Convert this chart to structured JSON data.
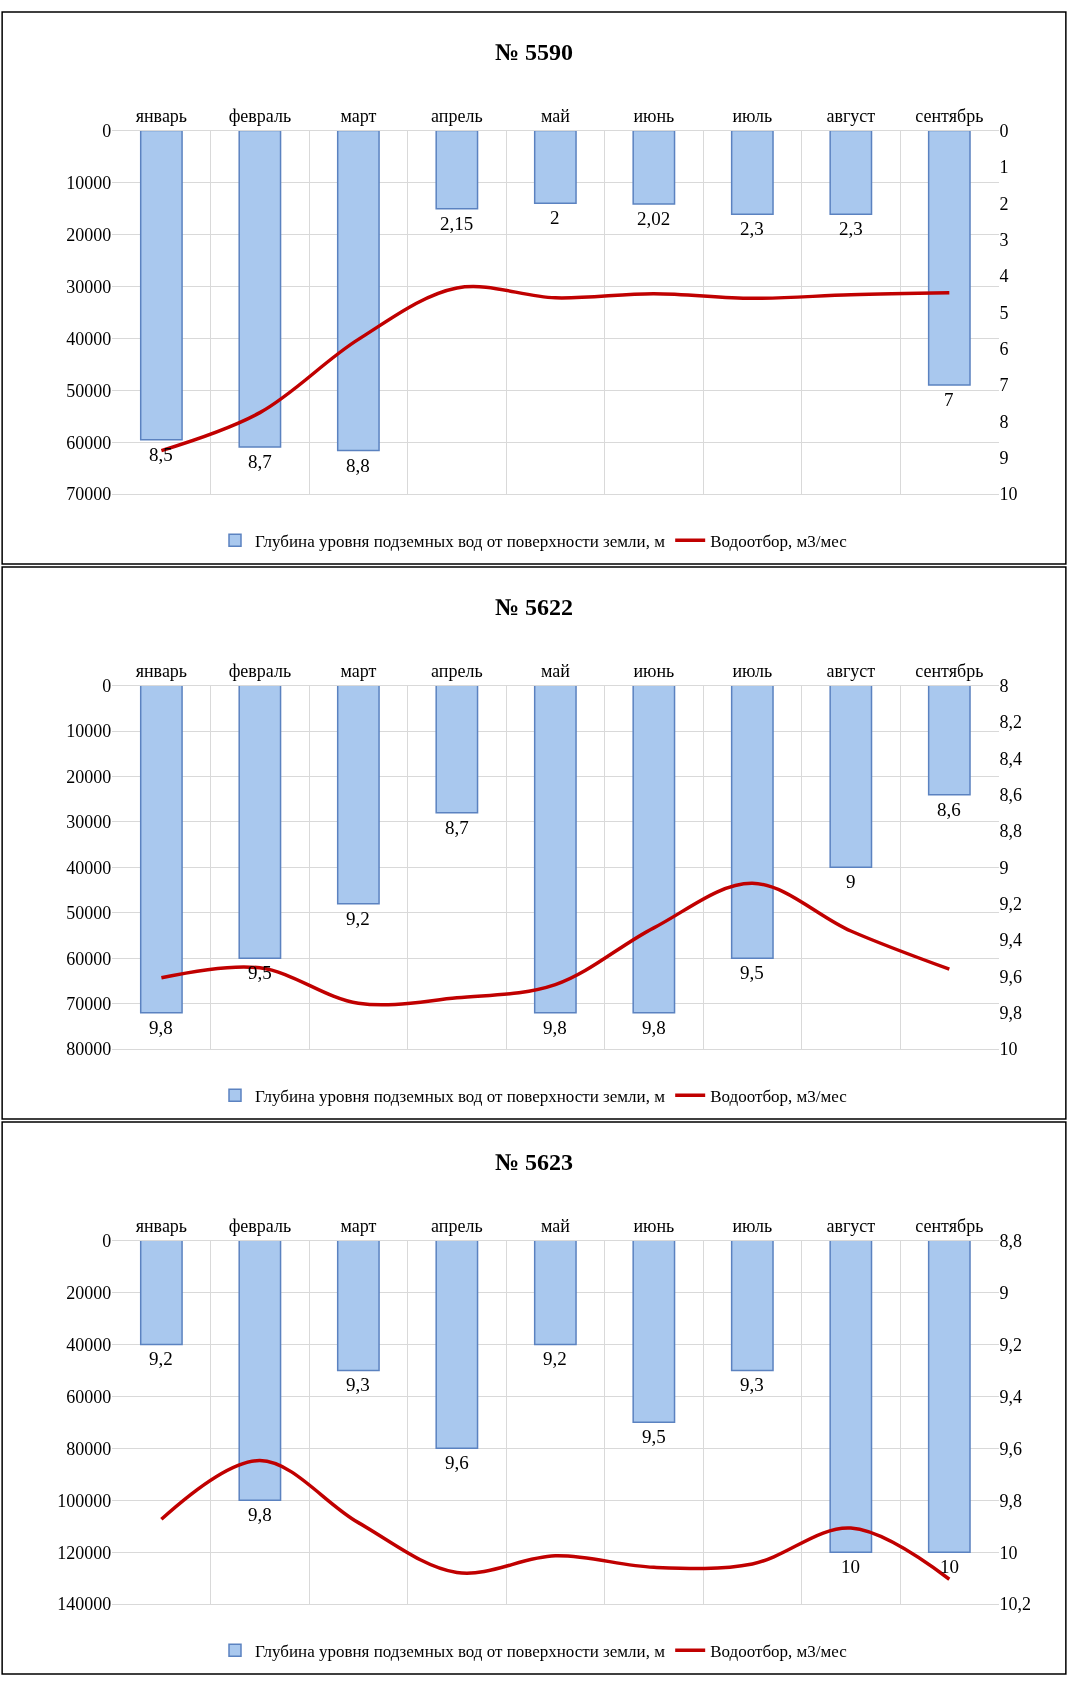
{
  "chart_data": [
    {
      "type": "bar",
      "title": "№ 5590",
      "categories": [
        "январь",
        "февраль",
        "март",
        "апрель",
        "май",
        "июнь",
        "июль",
        "август",
        "сентябрь"
      ],
      "series": [
        {
          "name": "Глубина уровня подземных вод от поверхности земли, м",
          "axis": "y2",
          "color": "#a9c8ee",
          "values": [
            8.5,
            8.7,
            8.8,
            2.15,
            2,
            2.02,
            2.3,
            2.3,
            7
          ],
          "value_labels": [
            "8,5",
            "8,7",
            "8,8",
            "2,15",
            "2",
            "2,02",
            "2,3",
            "2,3",
            "7"
          ]
        },
        {
          "name": "Водоотбор, м3/мес",
          "type": "line",
          "color": "#c00000",
          "values": [
            61600,
            54300,
            40200,
            30300,
            32200,
            31400,
            32300,
            31600,
            31200
          ]
        }
      ],
      "ylim": [
        70000,
        0
      ],
      "yticks": [
        0,
        10000,
        20000,
        30000,
        40000,
        50000,
        60000,
        70000
      ],
      "y2lim": [
        10,
        0
      ],
      "y2ticks": [
        0,
        1,
        2,
        3,
        4,
        5,
        6,
        7,
        8,
        9,
        10
      ],
      "grid": true,
      "legend": "bottom",
      "marker": "none",
      "line_style": "solid"
    },
    {
      "type": "bar",
      "title": "№ 5622",
      "categories": [
        "январь",
        "февраль",
        "март",
        "апрель",
        "май",
        "июнь",
        "июль",
        "август",
        "сентябрь"
      ],
      "series": [
        {
          "name": "Глубина уровня подземных вод от поверхности земли, м",
          "axis": "y2",
          "color": "#a9c8ee",
          "values": [
            9.8,
            9.5,
            9.2,
            8.7,
            9.8,
            9.8,
            9.5,
            9,
            8.6
          ],
          "value_labels": [
            "9,8",
            "9,5",
            "9,2",
            "8,7",
            "9,8",
            "9,8",
            "9,5",
            "9",
            "8,6"
          ]
        },
        {
          "name": "Водоотбор, м3/мес",
          "type": "line",
          "color": "#c00000",
          "values": [
            64300,
            62100,
            69900,
            68700,
            65800,
            53300,
            43500,
            54000,
            62400
          ]
        }
      ],
      "ylim": [
        80000,
        0
      ],
      "yticks": [
        0,
        10000,
        20000,
        30000,
        40000,
        50000,
        60000,
        70000,
        80000
      ],
      "y2lim": [
        10,
        8
      ],
      "y2ticks": [
        8,
        {
          "value": 8.2,
          "label": "8,2"
        },
        {
          "value": 8.4,
          "label": "8,4"
        },
        {
          "value": 8.6,
          "label": "8,6"
        },
        {
          "value": 8.8,
          "label": "8,8"
        },
        9,
        {
          "value": 9.2,
          "label": "9,2"
        },
        {
          "value": 9.4,
          "label": "9,4"
        },
        {
          "value": 9.6,
          "label": "9,6"
        },
        {
          "value": 9.8,
          "label": "9,8"
        },
        10
      ],
      "grid": true,
      "legend": "bottom",
      "marker": "none",
      "line_style": "solid"
    },
    {
      "type": "bar",
      "title": "№ 5623",
      "categories": [
        "январь",
        "февраль",
        "март",
        "апрель",
        "май",
        "июнь",
        "июль",
        "август",
        "сентябрь"
      ],
      "series": [
        {
          "name": "Глубина уровня подземных вод от поверхности земли, м",
          "axis": "y2",
          "color": "#a9c8ee",
          "values": [
            9.2,
            9.8,
            9.3,
            9.6,
            9.2,
            9.5,
            9.3,
            10,
            10
          ],
          "value_labels": [
            "9,2",
            "9,8",
            "9,3",
            "9,6",
            "9,2",
            "9,5",
            "9,3",
            "10",
            "10"
          ]
        },
        {
          "name": "Водоотбор, м3/мес",
          "type": "line",
          "color": "#c00000",
          "values": [
            107300,
            84700,
            108600,
            127800,
            121400,
            125800,
            124500,
            110700,
            130400
          ]
        }
      ],
      "ylim": [
        140000,
        0
      ],
      "yticks": [
        0,
        20000,
        40000,
        60000,
        80000,
        100000,
        120000,
        140000
      ],
      "y2lim": [
        10.2,
        8.8
      ],
      "y2ticks": [
        {
          "value": 8.8,
          "label": "8,8"
        },
        9,
        {
          "value": 9.2,
          "label": "9,2"
        },
        {
          "value": 9.4,
          "label": "9,4"
        },
        {
          "value": 9.6,
          "label": "9,6"
        },
        {
          "value": 9.8,
          "label": "9,8"
        },
        10,
        {
          "value": 10.2,
          "label": "10,2"
        }
      ],
      "grid": true,
      "legend": "bottom",
      "marker": "none",
      "line_style": "solid"
    }
  ]
}
